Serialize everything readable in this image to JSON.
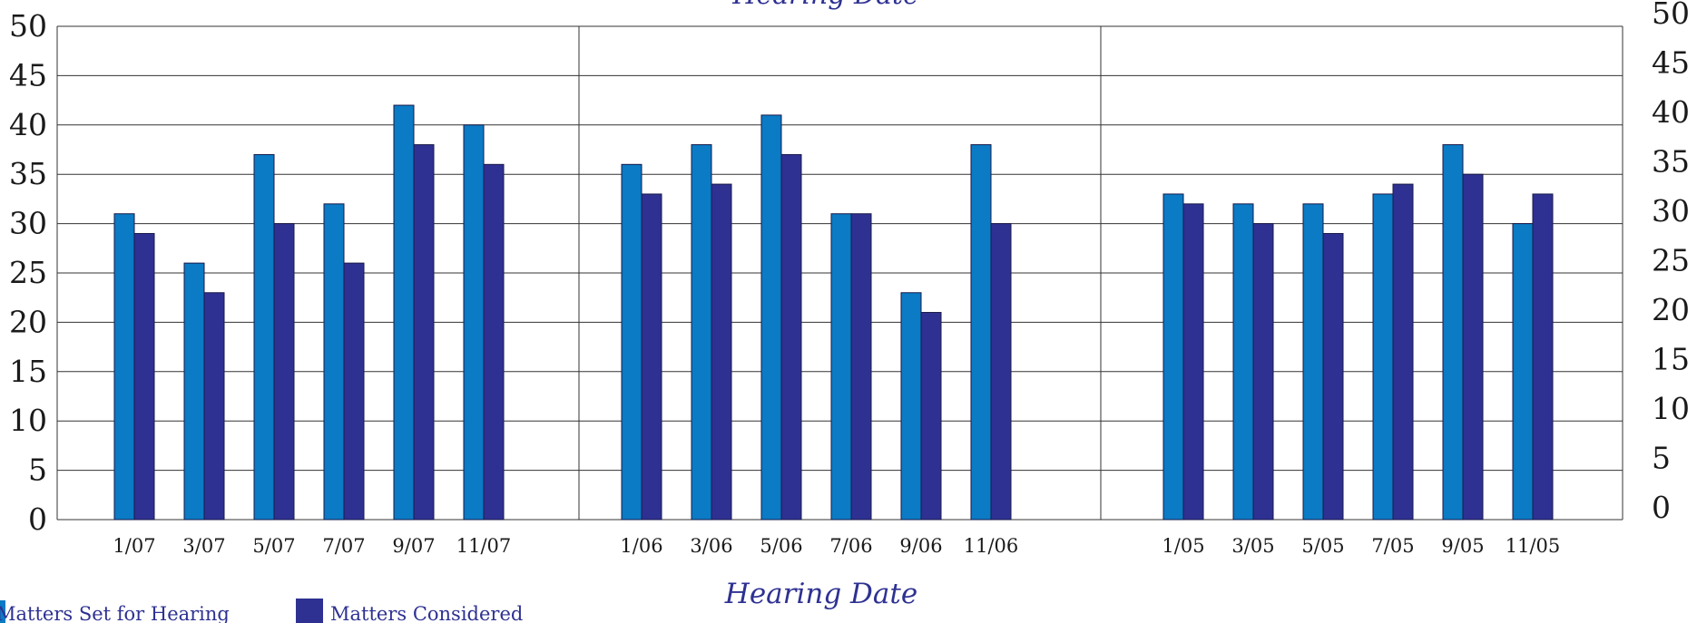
{
  "chart_data": {
    "type": "bar",
    "title": "",
    "title_partial": "Hearing Date",
    "xlabel": "Hearing Date",
    "ylabel": "",
    "ylim": [
      0,
      50
    ],
    "yticks": [
      0,
      5,
      10,
      15,
      20,
      25,
      30,
      35,
      40,
      45,
      50
    ],
    "grid": true,
    "legend_position": "bottom-left",
    "categories": [
      "1/07",
      "3/07",
      "5/07",
      "7/07",
      "9/07",
      "11/07",
      "1/06",
      "3/06",
      "5/06",
      "7/06",
      "9/06",
      "11/06",
      "1/05",
      "3/05",
      "5/05",
      "7/05",
      "9/05",
      "11/05"
    ],
    "groups": [
      {
        "categories": [
          "1/07",
          "3/07",
          "5/07",
          "7/07",
          "9/07",
          "11/07"
        ]
      },
      {
        "categories": [
          "1/06",
          "3/06",
          "5/06",
          "7/06",
          "9/06",
          "11/06"
        ]
      },
      {
        "categories": [
          "1/05",
          "3/05",
          "5/05",
          "7/05",
          "9/05",
          "11/05"
        ]
      }
    ],
    "series": [
      {
        "name": "Matters Set for Hearing",
        "color": "#0a7bc4",
        "values": [
          31,
          26,
          37,
          32,
          42,
          40,
          36,
          38,
          41,
          31,
          23,
          38,
          33,
          32,
          32,
          33,
          38,
          30
        ]
      },
      {
        "name": "Matters Considered",
        "color": "#2e3192",
        "values": [
          29,
          23,
          30,
          26,
          38,
          36,
          33,
          34,
          37,
          31,
          21,
          30,
          32,
          30,
          29,
          34,
          35,
          33
        ]
      }
    ]
  }
}
